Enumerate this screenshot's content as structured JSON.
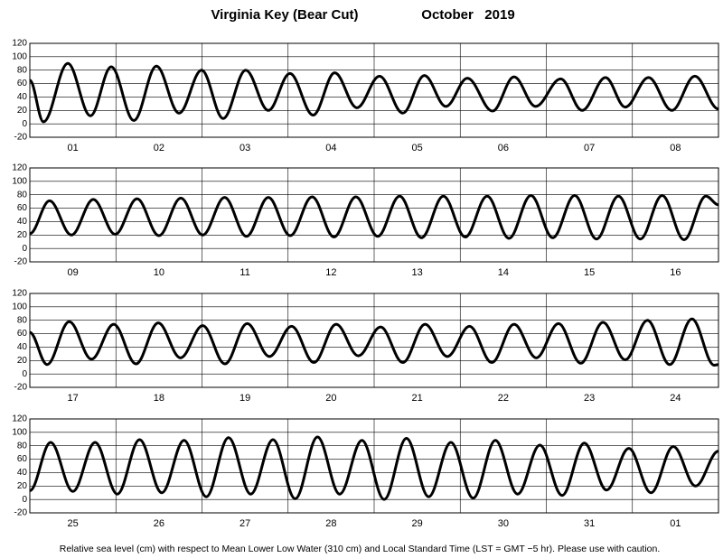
{
  "title": "Virginia Key (Bear Cut)",
  "date": "October   2019",
  "footer": "Relative sea level (cm) with respect to Mean Lower Low Water (310 cm) and Local Standard Time (LST = GMT −5 hr). Please use with caution.",
  "chart_data": [
    {
      "type": "line",
      "categories": [
        "01",
        "02",
        "03",
        "04",
        "05",
        "06",
        "07",
        "08"
      ],
      "x": [
        0,
        3.8,
        10.6,
        16.9,
        22.7,
        29,
        35.3,
        41.6,
        47.9,
        53.9,
        60.2,
        66.5,
        72.5,
        79,
        85,
        91.2,
        97.5,
        104,
        110,
        116,
        122,
        129,
        135,
        141,
        148,
        154,
        160.5,
        166,
        172.5,
        179,
        185.4,
        192
      ],
      "series": [
        {
          "color": "#000000",
          "values": [
            65,
            3,
            90,
            12,
            85,
            5,
            86,
            16,
            80,
            8,
            80,
            20,
            75,
            13,
            76,
            24,
            71,
            16,
            72,
            26,
            68,
            19,
            70,
            26,
            67,
            20,
            69,
            25,
            69,
            20,
            71,
            22
          ]
        }
      ],
      "xlim": [
        0,
        192
      ],
      "xticks": [
        0,
        24,
        48,
        72,
        96,
        120,
        144,
        168,
        192
      ],
      "ylim": [
        -20,
        120
      ],
      "yticks": [
        -20,
        0,
        20,
        40,
        60,
        80,
        100,
        120
      ],
      "grid": true
    },
    {
      "type": "line",
      "categories": [
        "09",
        "10",
        "11",
        "12",
        "13",
        "14",
        "15",
        "16"
      ],
      "x": [
        0,
        5.5,
        11.6,
        17.7,
        23.8,
        29.9,
        36,
        42.1,
        48.2,
        54.3,
        60.4,
        66.5,
        72.6,
        78.7,
        84.8,
        90.9,
        97,
        103.1,
        109.2,
        115.3,
        121.4,
        127.5,
        133.6,
        139.7,
        145.8,
        151.9,
        158,
        164.1,
        170.2,
        176.3,
        182.4,
        188.5,
        192
      ],
      "series": [
        {
          "color": "#000000",
          "values": [
            22,
            71,
            20,
            73,
            21,
            74,
            19,
            75,
            20,
            76,
            18,
            76,
            19,
            77,
            17,
            77,
            18,
            78,
            16,
            78,
            17,
            78,
            15,
            79,
            16,
            79,
            14,
            78,
            14,
            79,
            13,
            78,
            65
          ]
        }
      ],
      "xlim": [
        0,
        192
      ],
      "xticks": [
        0,
        24,
        48,
        72,
        96,
        120,
        144,
        168,
        192
      ],
      "ylim": [
        -20,
        120
      ],
      "yticks": [
        -20,
        0,
        20,
        40,
        60,
        80,
        100,
        120
      ],
      "grid": true
    },
    {
      "type": "line",
      "categories": [
        "17",
        "18",
        "19",
        "20",
        "21",
        "22",
        "23",
        "24"
      ],
      "x": [
        0,
        4.8,
        11,
        17.2,
        23.4,
        29.6,
        35.8,
        42,
        48.2,
        54.4,
        60.6,
        66.8,
        73,
        79.2,
        85.4,
        91.6,
        97.8,
        104,
        110.2,
        116.4,
        122.6,
        128.8,
        135,
        141.2,
        147.4,
        153.6,
        159.8,
        166,
        172.2,
        178.4,
        184.6,
        190.8,
        192
      ],
      "series": [
        {
          "color": "#000000",
          "values": [
            62,
            14,
            78,
            22,
            74,
            15,
            76,
            24,
            72,
            15,
            75,
            26,
            71,
            17,
            74,
            27,
            70,
            17,
            74,
            26,
            71,
            17,
            74,
            24,
            75,
            16,
            77,
            21,
            80,
            14,
            82,
            13,
            14
          ]
        }
      ],
      "xlim": [
        0,
        192
      ],
      "xticks": [
        0,
        24,
        48,
        72,
        96,
        120,
        144,
        168,
        192
      ],
      "ylim": [
        -20,
        120
      ],
      "yticks": [
        -20,
        0,
        20,
        40,
        60,
        80,
        100,
        120
      ],
      "grid": true
    },
    {
      "type": "line",
      "categories": [
        "25",
        "26",
        "27",
        "28",
        "29",
        "30",
        "31",
        "01"
      ],
      "x": [
        0,
        5.8,
        12,
        18.2,
        24.4,
        30.6,
        36.8,
        43,
        49.2,
        55.4,
        61.6,
        67.8,
        74,
        80.2,
        86.4,
        92.6,
        98.8,
        105,
        111.2,
        117.4,
        123.6,
        129.8,
        136,
        142.2,
        148.4,
        154.6,
        160.8,
        167,
        173.2,
        179.4,
        185.6,
        192
      ],
      "series": [
        {
          "color": "#000000",
          "values": [
            13,
            85,
            12,
            85,
            8,
            89,
            10,
            88,
            4,
            92,
            8,
            89,
            1,
            93,
            8,
            88,
            0,
            91,
            4,
            85,
            2,
            88,
            8,
            81,
            6,
            84,
            14,
            76,
            10,
            79,
            20,
            72
          ]
        }
      ],
      "xlim": [
        0,
        192
      ],
      "xticks": [
        0,
        24,
        48,
        72,
        96,
        120,
        144,
        168,
        192
      ],
      "ylim": [
        -20,
        120
      ],
      "yticks": [
        -20,
        0,
        20,
        40,
        60,
        80,
        100,
        120
      ],
      "grid": true
    }
  ]
}
